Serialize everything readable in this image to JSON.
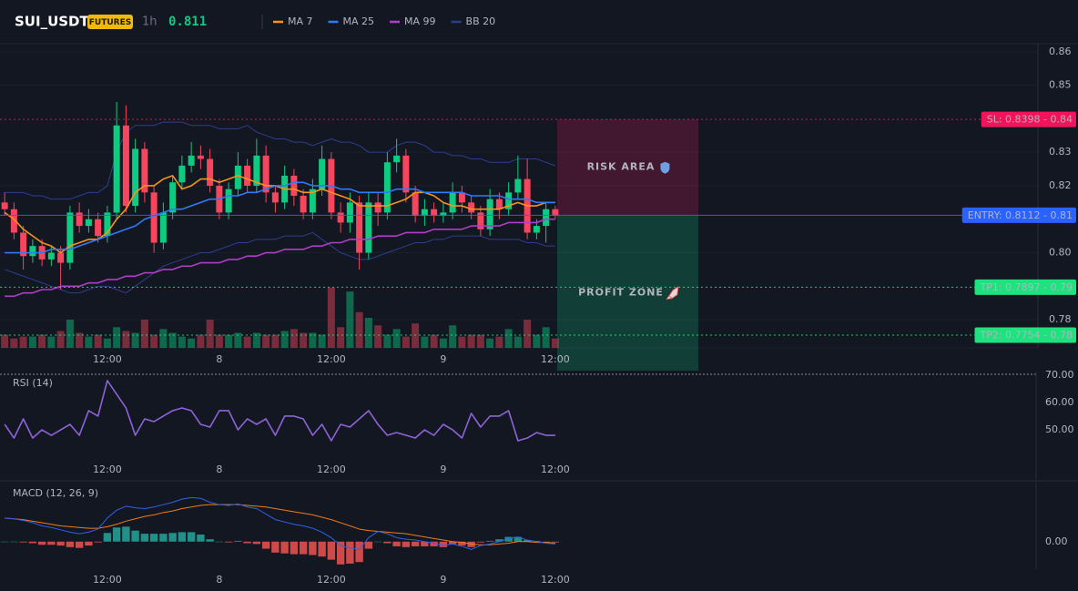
{
  "header": {
    "symbol": "SUI_USDT",
    "badge": "FUTURES",
    "interval": "1h",
    "price": 0.811
  },
  "chart_data": [
    {
      "type": "candlestick",
      "categories": [
        null,
        null,
        null,
        null,
        null,
        null,
        null,
        null,
        null,
        null,
        null,
        "12:00",
        null,
        null,
        null,
        null,
        null,
        null,
        null,
        null,
        null,
        null,
        null,
        "8",
        null,
        null,
        null,
        null,
        null,
        null,
        null,
        null,
        null,
        null,
        null,
        "12:00",
        null,
        null,
        null,
        null,
        null,
        null,
        null,
        null,
        null,
        null,
        null,
        "9",
        null,
        null,
        null,
        null,
        null,
        null,
        null,
        null,
        null,
        null,
        null,
        "12:00"
      ],
      "open": [
        0.815,
        0.813,
        0.806,
        0.799,
        0.802,
        0.798,
        0.8,
        0.797,
        0.812,
        0.808,
        0.81,
        0.805,
        0.812,
        0.838,
        0.814,
        0.831,
        0.818,
        0.803,
        0.812,
        0.821,
        0.826,
        0.829,
        0.828,
        0.82,
        0.812,
        0.819,
        0.826,
        0.82,
        0.829,
        0.818,
        0.815,
        0.823,
        0.817,
        0.812,
        0.819,
        0.828,
        0.812,
        0.809,
        0.815,
        0.8,
        0.815,
        0.812,
        0.827,
        0.829,
        0.818,
        0.811,
        0.813,
        0.811,
        0.812,
        0.818,
        0.815,
        0.812,
        0.807,
        0.816,
        0.813,
        0.818,
        0.822,
        0.806,
        0.808,
        0.813
      ],
      "high": [
        0.818,
        0.815,
        0.808,
        0.804,
        0.804,
        0.802,
        0.802,
        0.814,
        0.815,
        0.813,
        0.812,
        0.814,
        0.845,
        0.844,
        0.834,
        0.833,
        0.82,
        0.815,
        0.823,
        0.829,
        0.833,
        0.832,
        0.831,
        0.822,
        0.821,
        0.83,
        0.828,
        0.834,
        0.832,
        0.82,
        0.826,
        0.825,
        0.819,
        0.822,
        0.832,
        0.83,
        0.815,
        0.818,
        0.817,
        0.818,
        0.818,
        0.83,
        0.834,
        0.831,
        0.82,
        0.816,
        0.815,
        0.815,
        0.821,
        0.82,
        0.817,
        0.814,
        0.819,
        0.818,
        0.821,
        0.829,
        0.828,
        0.81,
        0.815,
        0.814
      ],
      "low": [
        0.811,
        0.804,
        0.795,
        0.797,
        0.796,
        0.796,
        0.789,
        0.795,
        0.806,
        0.806,
        0.803,
        0.803,
        0.81,
        0.812,
        0.812,
        0.815,
        0.8,
        0.801,
        0.81,
        0.819,
        0.824,
        0.825,
        0.818,
        0.81,
        0.81,
        0.817,
        0.818,
        0.818,
        0.815,
        0.812,
        0.813,
        0.814,
        0.81,
        0.81,
        0.817,
        0.81,
        0.806,
        0.806,
        0.795,
        0.798,
        0.808,
        0.81,
        0.824,
        0.815,
        0.809,
        0.808,
        0.809,
        0.809,
        0.81,
        0.812,
        0.81,
        0.805,
        0.805,
        0.81,
        0.811,
        0.816,
        0.804,
        0.804,
        0.803,
        0.81
      ],
      "close": [
        0.813,
        0.806,
        0.799,
        0.802,
        0.798,
        0.8,
        0.797,
        0.812,
        0.808,
        0.81,
        0.805,
        0.812,
        0.838,
        0.814,
        0.831,
        0.818,
        0.803,
        0.812,
        0.821,
        0.826,
        0.829,
        0.828,
        0.82,
        0.812,
        0.819,
        0.826,
        0.82,
        0.829,
        0.818,
        0.815,
        0.823,
        0.817,
        0.812,
        0.819,
        0.828,
        0.812,
        0.809,
        0.815,
        0.8,
        0.815,
        0.812,
        0.827,
        0.829,
        0.818,
        0.811,
        0.813,
        0.811,
        0.812,
        0.818,
        0.815,
        0.812,
        0.807,
        0.816,
        0.813,
        0.818,
        0.822,
        0.806,
        0.808,
        0.813,
        0.811
      ],
      "volume": [
        14,
        10,
        12,
        12,
        14,
        12,
        18,
        30,
        16,
        12,
        14,
        10,
        22,
        18,
        16,
        30,
        14,
        20,
        16,
        12,
        10,
        14,
        30,
        14,
        14,
        16,
        12,
        16,
        14,
        14,
        18,
        20,
        16,
        16,
        14,
        64,
        22,
        60,
        38,
        32,
        24,
        14,
        20,
        12,
        26,
        12,
        14,
        10,
        24,
        12,
        14,
        14,
        10,
        12,
        20,
        12,
        30,
        14,
        22,
        10
      ],
      "up_color": "#0ecb81",
      "down_color": "#f6465d",
      "series": [
        {
          "name": "MA 7",
          "color": "#f7931a",
          "values": [
            0.812,
            0.81,
            0.807,
            0.805,
            0.803,
            0.802,
            0.8,
            0.802,
            0.803,
            0.804,
            0.804,
            0.806,
            0.81,
            0.813,
            0.818,
            0.82,
            0.82,
            0.822,
            0.823,
            0.819,
            0.82,
            0.822,
            0.822,
            0.821,
            0.822,
            0.823,
            0.822,
            0.821,
            0.82,
            0.82,
            0.819,
            0.819,
            0.818,
            0.818,
            0.819,
            0.818,
            0.817,
            0.816,
            0.814,
            0.814,
            0.814,
            0.814,
            0.815,
            0.816,
            0.818,
            0.818,
            0.817,
            0.815,
            0.814,
            0.814,
            0.813,
            0.813,
            0.813,
            0.813,
            0.814,
            0.815,
            0.814,
            0.814,
            0.815,
            0.815
          ]
        },
        {
          "name": "MA 25",
          "color": "#2f7bf5",
          "values": [
            0.8,
            0.8,
            0.8,
            0.8,
            0.8,
            0.801,
            0.801,
            0.801,
            0.802,
            0.803,
            0.804,
            0.805,
            0.806,
            0.807,
            0.808,
            0.81,
            0.811,
            0.812,
            0.813,
            0.813,
            0.814,
            0.815,
            0.816,
            0.816,
            0.817,
            0.817,
            0.818,
            0.818,
            0.819,
            0.82,
            0.82,
            0.821,
            0.821,
            0.82,
            0.82,
            0.82,
            0.819,
            0.819,
            0.818,
            0.818,
            0.818,
            0.818,
            0.819,
            0.819,
            0.819,
            0.818,
            0.818,
            0.818,
            0.818,
            0.818,
            0.817,
            0.817,
            0.817,
            0.817,
            0.816,
            0.816,
            0.816,
            0.815,
            0.815,
            0.815
          ]
        },
        {
          "name": "MA 99",
          "color": "#b03cc8",
          "values": [
            0.787,
            0.787,
            0.788,
            0.788,
            0.789,
            0.789,
            0.79,
            0.79,
            0.79,
            0.791,
            0.791,
            0.792,
            0.792,
            0.793,
            0.793,
            0.794,
            0.794,
            0.795,
            0.795,
            0.796,
            0.796,
            0.797,
            0.797,
            0.797,
            0.798,
            0.798,
            0.799,
            0.799,
            0.8,
            0.8,
            0.801,
            0.801,
            0.801,
            0.802,
            0.802,
            0.803,
            0.803,
            0.804,
            0.804,
            0.804,
            0.805,
            0.805,
            0.805,
            0.806,
            0.806,
            0.806,
            0.807,
            0.807,
            0.807,
            0.807,
            0.808,
            0.808,
            0.808,
            0.808,
            0.809,
            0.809,
            0.809,
            0.809,
            0.81,
            0.81
          ]
        }
      ],
      "bands": [
        {
          "name": "BB 20",
          "color": "#2c3f8c",
          "upper": [
            0.818,
            0.818,
            0.818,
            0.817,
            0.817,
            0.816,
            0.816,
            0.816,
            0.817,
            0.818,
            0.818,
            0.82,
            0.83,
            0.836,
            0.838,
            0.838,
            0.838,
            0.839,
            0.839,
            0.839,
            0.838,
            0.838,
            0.838,
            0.837,
            0.837,
            0.837,
            0.838,
            0.836,
            0.835,
            0.834,
            0.834,
            0.833,
            0.833,
            0.832,
            0.833,
            0.834,
            0.833,
            0.833,
            0.832,
            0.83,
            0.83,
            0.83,
            0.832,
            0.833,
            0.833,
            0.832,
            0.83,
            0.83,
            0.829,
            0.829,
            0.828,
            0.828,
            0.827,
            0.827,
            0.827,
            0.828,
            0.828,
            0.828,
            0.827,
            0.826
          ],
          "lower": [
            0.795,
            0.794,
            0.793,
            0.792,
            0.791,
            0.79,
            0.789,
            0.788,
            0.788,
            0.789,
            0.79,
            0.79,
            0.789,
            0.788,
            0.79,
            0.792,
            0.794,
            0.796,
            0.797,
            0.798,
            0.799,
            0.8,
            0.8,
            0.801,
            0.802,
            0.803,
            0.803,
            0.804,
            0.804,
            0.804,
            0.805,
            0.805,
            0.805,
            0.806,
            0.804,
            0.802,
            0.8,
            0.799,
            0.798,
            0.798,
            0.799,
            0.8,
            0.801,
            0.802,
            0.803,
            0.803,
            0.804,
            0.804,
            0.805,
            0.805,
            0.805,
            0.805,
            0.804,
            0.804,
            0.804,
            0.804,
            0.803,
            0.803,
            0.802,
            0.802
          ]
        }
      ],
      "ylim": [
        0.7716,
        0.8624
      ],
      "yticks": [
        0.86,
        0.85,
        0.83,
        0.82,
        {
          "value": 0.8,
          "label": "0.80"
        },
        0.78
      ],
      "grid": true,
      "levels": [
        {
          "label": "SL: 0.8398 - 0.84",
          "value": 0.8398,
          "color": "#f0145a",
          "text_color": "#ffffff",
          "style": "dotted"
        },
        {
          "label": "ENTRY: 0.8112 - 0.81",
          "value": 0.8112,
          "color": "#2962ff",
          "text_color": "#ffffff",
          "style": "solid"
        },
        {
          "label": "TP1: 0.7897 - 0.79",
          "value": 0.7897,
          "color": "#1de27e",
          "text_color": "#0b1a10",
          "style": "dotted"
        },
        {
          "label": "TP2: 0.7754 - 0.78",
          "value": 0.7754,
          "color": "#1de27e",
          "text_color": "#0b1a10",
          "style": "dotted"
        }
      ],
      "zones": [
        {
          "label": "RISK AREA",
          "from": 0.8112,
          "to": 0.8398,
          "color": "#e91e63",
          "text_color": "#f0145a",
          "icon": "shield"
        },
        {
          "label": "PROFIT ZONE",
          "from": 0.7648,
          "to": 0.8112,
          "color": "#0ecb81",
          "text_color": "#1de27e",
          "icon": "rocket"
        }
      ]
    },
    {
      "type": "line",
      "label": "RSI (14)",
      "series": [
        {
          "color": "#8e63d8",
          "values": [
            52,
            47,
            54,
            47,
            50,
            48,
            50,
            52,
            48,
            57,
            55,
            68,
            63,
            58,
            48,
            54,
            53,
            55,
            57,
            58,
            57,
            52,
            51,
            57,
            57,
            50,
            54,
            52,
            54,
            48,
            55,
            55,
            54,
            48,
            52,
            46,
            52,
            51,
            54,
            57,
            52,
            48,
            49,
            48,
            47,
            50,
            48,
            52,
            50,
            47,
            56,
            51,
            55,
            55,
            57,
            46,
            47,
            49,
            48,
            48
          ]
        }
      ],
      "ylim": [
        31.7,
        71.3
      ],
      "yticks": [
        {
          "value": 70,
          "label": "70.00"
        },
        {
          "value": 60,
          "label": "60.00"
        },
        {
          "value": 50,
          "label": "50.00"
        }
      ]
    },
    {
      "type": "macd",
      "label": "MACD (12, 26, 9)",
      "macd": {
        "color": "#2f62e8",
        "values": [
          0.003,
          0.0029,
          0.0027,
          0.0024,
          0.002,
          0.0018,
          0.0015,
          0.0012,
          0.001,
          0.0012,
          0.0016,
          0.003,
          0.004,
          0.0045,
          0.0043,
          0.0042,
          0.0044,
          0.0047,
          0.005,
          0.0054,
          0.0056,
          0.0055,
          0.005,
          0.0047,
          0.0046,
          0.0048,
          0.0044,
          0.0042,
          0.0035,
          0.0028,
          0.0025,
          0.0022,
          0.002,
          0.0017,
          0.0012,
          0.0005,
          -0.0005,
          -0.0008,
          -0.001,
          0.0005,
          0.0013,
          0.001,
          0.0005,
          0.0003,
          0.0002,
          0,
          -0.0002,
          -0.0005,
          -0.0003,
          -0.0006,
          -0.001,
          -0.0005,
          -0.0003,
          0,
          0.0004,
          0.0006,
          0.0002,
          0,
          -0.0002,
          -0.0003
        ]
      },
      "signal": {
        "color": "#f07c1a",
        "values": [
          0.003,
          0.0029,
          0.0028,
          0.0026,
          0.0024,
          0.0022,
          0.002,
          0.0019,
          0.0018,
          0.0017,
          0.0017,
          0.0019,
          0.0022,
          0.0026,
          0.0029,
          0.0032,
          0.0034,
          0.0037,
          0.0039,
          0.0042,
          0.0044,
          0.0046,
          0.0047,
          0.0047,
          0.0047,
          0.0047,
          0.0046,
          0.0045,
          0.0044,
          0.0042,
          0.004,
          0.0038,
          0.0036,
          0.0034,
          0.0031,
          0.0028,
          0.0024,
          0.002,
          0.0016,
          0.0014,
          0.0013,
          0.0012,
          0.0011,
          0.001,
          0.0008,
          0.0006,
          0.0004,
          0.0002,
          0,
          -0.0001,
          -0.0003,
          -0.0004,
          -0.0004,
          -0.0003,
          -0.0002,
          0,
          0,
          -0.0001,
          -0.0001,
          -0.0002
        ]
      },
      "histogram": {
        "up_color": "#26a69a",
        "down_color": "#ef5350",
        "values": [
          0,
          0,
          -0.0001,
          -0.0002,
          -0.0004,
          -0.0004,
          -0.0005,
          -0.0007,
          -0.0008,
          -0.0005,
          -0.0001,
          0.0011,
          0.0018,
          0.0019,
          0.0014,
          0.001,
          0.001,
          0.001,
          0.0011,
          0.0012,
          0.0012,
          0.0009,
          0.0003,
          0,
          -0.0001,
          0.0001,
          -0.0002,
          -0.0003,
          -0.0009,
          -0.0014,
          -0.0015,
          -0.0016,
          -0.0016,
          -0.0017,
          -0.0019,
          -0.0023,
          -0.0029,
          -0.0028,
          -0.0026,
          -0.0009,
          0,
          -0.0002,
          -0.0006,
          -0.0007,
          -0.0006,
          -0.0006,
          -0.0006,
          -0.0007,
          -0.0003,
          -0.0005,
          -0.0007,
          -0.0001,
          0.0001,
          0.0003,
          0.0006,
          0.0006,
          0.0002,
          0.0001,
          -0.0001,
          -0.0001
        ]
      },
      "ylim": [
        -0.0035,
        0.0075
      ],
      "yticks": [
        {
          "value": 0,
          "label": "0.00"
        }
      ]
    }
  ]
}
